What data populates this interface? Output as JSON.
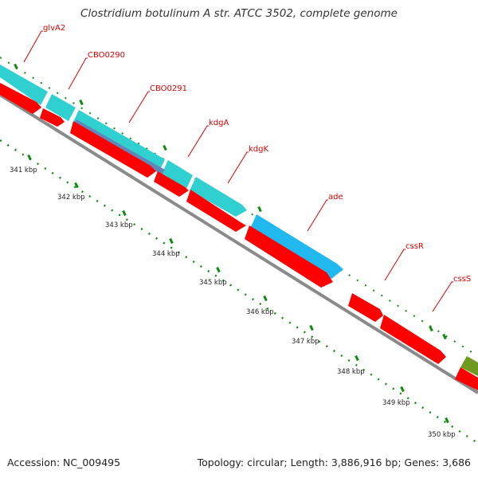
{
  "title": "Clostridium botulinum A str. ATCC 3502, complete genome",
  "footer": {
    "accession": "Accession: NC_009495",
    "topology": "Topology: circular; Length: 3,886,916 bp; Genes: 3,686"
  },
  "colors": {
    "cds": "#ff0000",
    "gene": "#30d0d0",
    "gene_alt": "#20b8ee",
    "operon": "#5f88b8",
    "other": "#6f9a20",
    "backbone": "#8a8a8a",
    "tick": "#118811",
    "label": "#dd0000"
  },
  "gene_labels": [
    "glvA2",
    "CBO0290",
    "CBO0291",
    "kdgA",
    "kdgK",
    "ade",
    "cssR",
    "cssS"
  ],
  "kbp_ticks": [
    "341 kbp",
    "342 kbp",
    "343 kbp",
    "344 kbp",
    "345 kbp",
    "346 kbp",
    "347 kbp",
    "348 kbp",
    "349 kbp",
    "350 kbp"
  ]
}
